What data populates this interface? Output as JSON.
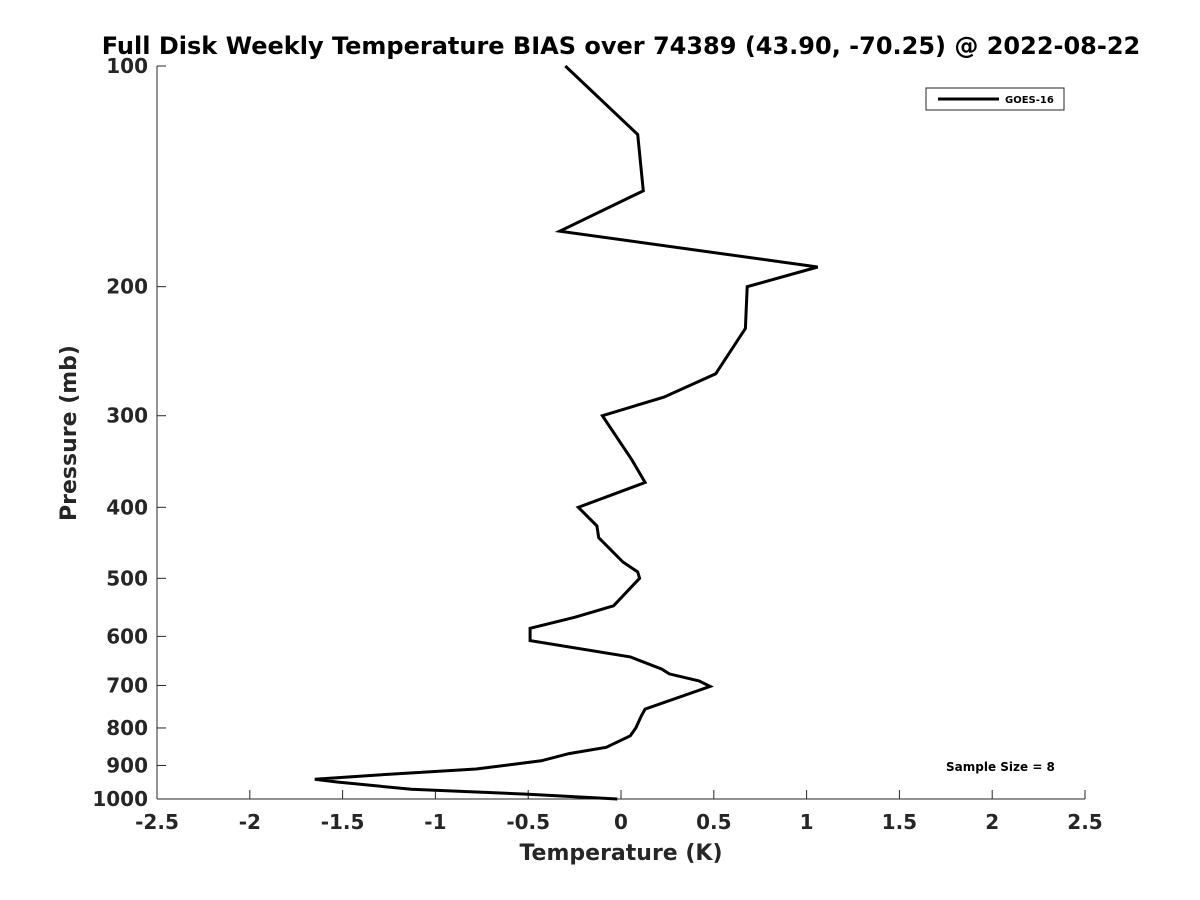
{
  "chart_data": {
    "type": "line",
    "title": "Full Disk Weekly Temperature BIAS over 74389 (43.90, -70.25) @ 2022-08-22",
    "xlabel": "Temperature (K)",
    "ylabel": "Pressure (mb)",
    "xlim": [
      -2.5,
      2.5
    ],
    "ylim": [
      100,
      1000
    ],
    "y_scale": "log",
    "y_reversed": true,
    "grid": false,
    "x_ticks": [
      -2.5,
      -2,
      -1.5,
      -1,
      -0.5,
      0,
      0.5,
      1,
      1.5,
      2,
      2.5
    ],
    "x_tick_labels": [
      "-2.5",
      "-2",
      "-1.5",
      "-1",
      "-0.5",
      "0",
      "0.5",
      "1",
      "1.5",
      "2",
      "2.5"
    ],
    "y_ticks": [
      100,
      200,
      300,
      400,
      500,
      600,
      700,
      800,
      900,
      1000
    ],
    "y_tick_labels": [
      "100",
      "200",
      "300",
      "400",
      "500",
      "600",
      "700",
      "800",
      "900",
      "1000"
    ],
    "legend": {
      "placement": "top-right",
      "entries": [
        "GOES-16"
      ]
    },
    "annotation": "Sample Size = 8",
    "series": [
      {
        "name": "GOES-16",
        "color": "#000000",
        "points": [
          [
            -0.3,
            100
          ],
          [
            0.09,
            124
          ],
          [
            0.12,
            148
          ],
          [
            -0.33,
            168
          ],
          [
            1.06,
            188
          ],
          [
            0.68,
            200
          ],
          [
            0.67,
            228
          ],
          [
            0.51,
            263
          ],
          [
            0.23,
            283
          ],
          [
            -0.1,
            300
          ],
          [
            0.06,
            345
          ],
          [
            0.13,
            370
          ],
          [
            -0.23,
            400
          ],
          [
            -0.13,
            424
          ],
          [
            -0.12,
            440
          ],
          [
            0.01,
            475
          ],
          [
            0.09,
            490
          ],
          [
            0.1,
            500
          ],
          [
            -0.04,
            545
          ],
          [
            -0.25,
            565
          ],
          [
            -0.49,
            585
          ],
          [
            -0.49,
            608
          ],
          [
            0.05,
            640
          ],
          [
            0.22,
            665
          ],
          [
            0.26,
            675
          ],
          [
            0.42,
            690
          ],
          [
            0.48,
            702
          ],
          [
            0.13,
            754
          ],
          [
            0.11,
            770
          ],
          [
            0.08,
            800
          ],
          [
            0.05,
            820
          ],
          [
            -0.08,
            850
          ],
          [
            -0.28,
            867
          ],
          [
            -0.43,
            887
          ],
          [
            -0.78,
            910
          ],
          [
            -1.33,
            928
          ],
          [
            -1.65,
            940
          ],
          [
            -1.53,
            948
          ],
          [
            -1.13,
            970
          ],
          [
            -0.5,
            985
          ],
          [
            -0.02,
            1000
          ]
        ]
      }
    ]
  }
}
